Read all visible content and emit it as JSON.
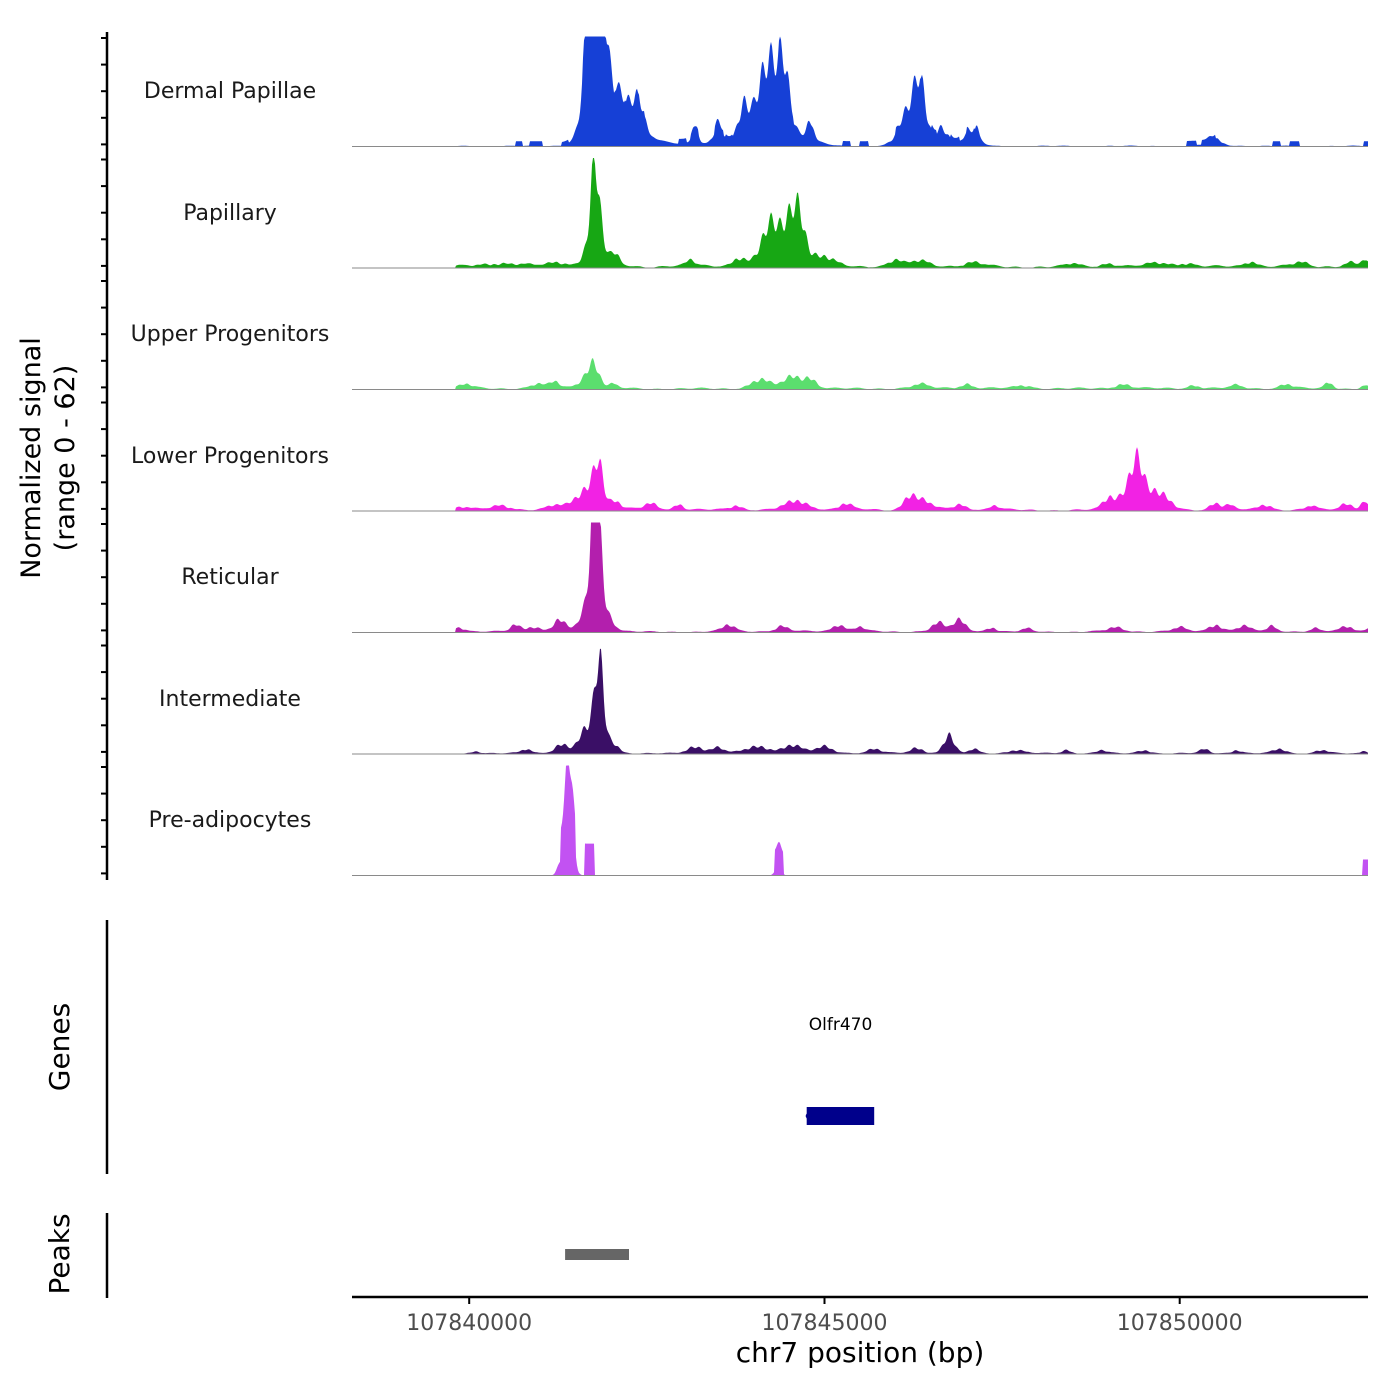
{
  "chart_data": {
    "type": "area",
    "title": "",
    "ylabel_line1": "Normalized signal",
    "ylabel_line2": "(range 0 - 62)",
    "ylim": [
      0,
      62
    ],
    "xlabel": "chr7 position (bp)",
    "xlim": [
      107838350,
      107852650
    ],
    "xticks": [
      107840000,
      107845000,
      107850000
    ],
    "xtick_labels": [
      "107840000",
      "107845000",
      "107850000"
    ],
    "tracks": [
      {
        "name": "Dermal Papillae",
        "color": "#1640d6",
        "base": 0.4,
        "blocks": [
          [
            107840650,
            107840750,
            3
          ],
          [
            107840850,
            107841030,
            3
          ],
          [
            107841300,
            107841400,
            2
          ],
          [
            107841600,
            107841800,
            4
          ],
          [
            107842050,
            107842200,
            3
          ],
          [
            107842380,
            107842460,
            3
          ],
          [
            107842950,
            107843060,
            3
          ],
          [
            107843120,
            107843220,
            2
          ],
          [
            107843450,
            107843580,
            3
          ],
          [
            107843600,
            107843700,
            2
          ],
          [
            107844350,
            107844500,
            3
          ],
          [
            107844500,
            107844570,
            3
          ],
          [
            107845250,
            107845370,
            3
          ],
          [
            107845500,
            107845620,
            3
          ],
          [
            107846000,
            107846350,
            3
          ],
          [
            107846500,
            107846570,
            3
          ],
          [
            107846780,
            107846900,
            3
          ],
          [
            107847000,
            107847110,
            3
          ],
          [
            107850100,
            107850230,
            3
          ],
          [
            107850300,
            107850420,
            3
          ],
          [
            107850380,
            107850500,
            3
          ],
          [
            107851300,
            107851420,
            3
          ],
          [
            107851550,
            107851680,
            3
          ],
          [
            107852590,
            107852650,
            3
          ]
        ],
        "peaks": [
          [
            107841780,
            60,
            70,
            60
          ],
          [
            107841780,
            36,
            90,
            20
          ],
          [
            107841750,
            45,
            110,
            150
          ],
          [
            107841850,
            30,
            110,
            220
          ],
          [
            107842100,
            14,
            100,
            200
          ],
          [
            107842350,
            20,
            100,
            350
          ],
          [
            107843180,
            9,
            35,
            100
          ],
          [
            107843500,
            8,
            60,
            120
          ],
          [
            107843860,
            15,
            70,
            180
          ],
          [
            107844220,
            28,
            160,
            160
          ],
          [
            107844430,
            18,
            60,
            150
          ],
          [
            107844300,
            10,
            200,
            350
          ],
          [
            107844800,
            11,
            40,
            160
          ],
          [
            107846350,
            22,
            80,
            80
          ],
          [
            107846200,
            14,
            130,
            180
          ],
          [
            107846650,
            8,
            80,
            120
          ],
          [
            107847150,
            7,
            40,
            100
          ],
          [
            107847000,
            5,
            60,
            150
          ],
          [
            107850500,
            3,
            80,
            200
          ]
        ]
      },
      {
        "name": "Papillary",
        "color": "#17a714",
        "base": 1.0,
        "blocks": [],
        "peaks": [
          [
            107841770,
            30,
            60,
            30
          ],
          [
            107841770,
            18,
            100,
            150
          ],
          [
            107842050,
            5,
            60,
            180
          ],
          [
            107841250,
            2,
            120,
            500
          ],
          [
            107840450,
            1.5,
            300,
            500
          ],
          [
            107843120,
            3,
            60,
            300
          ],
          [
            107844250,
            7,
            100,
            80
          ],
          [
            107844220,
            11,
            140,
            120
          ],
          [
            107844520,
            14,
            110,
            100
          ],
          [
            107844650,
            12,
            70,
            80
          ],
          [
            107844580,
            8,
            180,
            200
          ],
          [
            107845000,
            4,
            140,
            250
          ],
          [
            107843800,
            4,
            80,
            250
          ],
          [
            107846000,
            3,
            80,
            250
          ],
          [
            107846350,
            2.5,
            120,
            350
          ],
          [
            107847100,
            2,
            120,
            300
          ],
          [
            107848500,
            1.5,
            80,
            250
          ],
          [
            107849000,
            1.5,
            100,
            250
          ],
          [
            107849700,
            1.8,
            150,
            300
          ],
          [
            107850100,
            1.5,
            100,
            300
          ],
          [
            107851000,
            2.5,
            80,
            250
          ],
          [
            107851700,
            2,
            100,
            250
          ],
          [
            107852400,
            2,
            80,
            250
          ],
          [
            107852600,
            3,
            40,
            80
          ]
        ]
      },
      {
        "name": "Upper Progenitors",
        "color": "#5bde6e",
        "base": 0.8,
        "blocks": [],
        "peaks": [
          [
            107841760,
            8,
            70,
            100
          ],
          [
            107841660,
            5,
            100,
            180
          ],
          [
            107842030,
            2,
            50,
            150
          ],
          [
            107840960,
            2,
            80,
            250
          ],
          [
            107841200,
            3,
            60,
            150
          ],
          [
            107839950,
            2,
            80,
            250
          ],
          [
            107844100,
            4,
            120,
            200
          ],
          [
            107844550,
            5,
            120,
            180
          ],
          [
            107844800,
            4,
            80,
            200
          ],
          [
            107846350,
            2,
            100,
            300
          ],
          [
            107847000,
            2,
            80,
            250
          ],
          [
            107847800,
            1.5,
            100,
            300
          ],
          [
            107849200,
            2,
            100,
            300
          ],
          [
            107850200,
            1.5,
            80,
            250
          ],
          [
            107850800,
            1.5,
            80,
            200
          ],
          [
            107851500,
            2,
            80,
            200
          ],
          [
            107852100,
            3,
            50,
            100
          ],
          [
            107852600,
            1.5,
            40,
            80
          ]
        ]
      },
      {
        "name": "Lower Progenitors",
        "color": "#f222e4",
        "base": 0.8,
        "blocks": [],
        "peaks": [
          [
            107841820,
            17,
            65,
            60
          ],
          [
            107841700,
            9,
            110,
            180
          ],
          [
            107841500,
            3,
            100,
            200
          ],
          [
            107842050,
            4,
            70,
            200
          ],
          [
            107841200,
            2,
            100,
            250
          ],
          [
            107839900,
            1.5,
            100,
            300
          ],
          [
            107840450,
            2,
            120,
            300
          ],
          [
            107842550,
            3,
            80,
            200
          ],
          [
            107842950,
            2.5,
            60,
            200
          ],
          [
            107843750,
            2,
            80,
            250
          ],
          [
            107844600,
            4,
            150,
            250
          ],
          [
            107845300,
            3,
            80,
            250
          ],
          [
            107846200,
            6,
            80,
            120
          ],
          [
            107846400,
            4,
            100,
            200
          ],
          [
            107846900,
            2.5,
            80,
            250
          ],
          [
            107847400,
            2,
            60,
            200
          ],
          [
            107849000,
            5,
            80,
            150
          ],
          [
            107849400,
            15,
            80,
            80
          ],
          [
            107849300,
            9,
            130,
            150
          ],
          [
            107849600,
            7,
            120,
            150
          ],
          [
            107849800,
            4,
            100,
            200
          ],
          [
            107850500,
            3,
            70,
            150
          ],
          [
            107850700,
            2,
            60,
            150
          ],
          [
            107851200,
            2.5,
            80,
            200
          ],
          [
            107851850,
            2,
            60,
            150
          ],
          [
            107852350,
            3,
            80,
            200
          ],
          [
            107852600,
            4,
            40,
            80
          ]
        ]
      },
      {
        "name": "Reticular",
        "color": "#b31fad",
        "base": 0.6,
        "blocks": [],
        "peaks": [
          [
            107841780,
            44,
            60,
            60
          ],
          [
            107841780,
            24,
            100,
            160
          ],
          [
            107841600,
            3,
            80,
            200
          ],
          [
            107842000,
            2.5,
            60,
            200
          ],
          [
            107841270,
            5,
            80,
            120
          ],
          [
            107840650,
            3,
            60,
            150
          ],
          [
            107840900,
            2,
            100,
            200
          ],
          [
            107839850,
            2,
            80,
            200
          ],
          [
            107843650,
            3,
            80,
            200
          ],
          [
            107844400,
            2.5,
            80,
            250
          ],
          [
            107845200,
            3,
            80,
            250
          ],
          [
            107845500,
            2,
            60,
            200
          ],
          [
            107846600,
            4,
            80,
            200
          ],
          [
            107846900,
            5,
            80,
            150
          ],
          [
            107847350,
            2,
            60,
            150
          ],
          [
            107847850,
            1.5,
            60,
            150
          ],
          [
            107849100,
            2,
            100,
            250
          ],
          [
            107850000,
            2,
            80,
            250
          ],
          [
            107850500,
            3,
            80,
            200
          ],
          [
            107850900,
            2.5,
            80,
            200
          ],
          [
            107851300,
            2.5,
            60,
            200
          ],
          [
            107851900,
            1.5,
            60,
            150
          ],
          [
            107852350,
            2.5,
            80,
            200
          ],
          [
            107852650,
            1.5,
            40,
            80
          ]
        ]
      },
      {
        "name": "Intermediate",
        "color": "#3a0f66",
        "base": 0.5,
        "blocks": [],
        "peaks": [
          [
            107841830,
            28,
            55,
            60
          ],
          [
            107841800,
            15,
            110,
            140
          ],
          [
            107841600,
            6,
            80,
            150
          ],
          [
            107841300,
            4,
            80,
            200
          ],
          [
            107842050,
            3,
            60,
            150
          ],
          [
            107840800,
            2,
            60,
            150
          ],
          [
            107840100,
            1,
            60,
            150
          ],
          [
            107843180,
            3,
            100,
            200
          ],
          [
            107843500,
            2.5,
            80,
            150
          ],
          [
            107844050,
            3,
            150,
            250
          ],
          [
            107844550,
            3.5,
            120,
            250
          ],
          [
            107845000,
            3,
            100,
            250
          ],
          [
            107845700,
            2,
            80,
            200
          ],
          [
            107846300,
            2.5,
            80,
            200
          ],
          [
            107846750,
            8,
            70,
            80
          ],
          [
            107847100,
            2,
            60,
            150
          ],
          [
            107847700,
            1.5,
            100,
            250
          ],
          [
            107848400,
            1.5,
            60,
            150
          ],
          [
            107848900,
            1.5,
            60,
            150
          ],
          [
            107849500,
            1.5,
            80,
            150
          ],
          [
            107850350,
            2,
            60,
            150
          ],
          [
            107850800,
            1.5,
            60,
            150
          ],
          [
            107851400,
            2,
            80,
            150
          ],
          [
            107852000,
            1.5,
            80,
            150
          ],
          [
            107852600,
            1.5,
            30,
            60
          ]
        ]
      },
      {
        "name": "Pre-adipocytes",
        "color": "#c252f2",
        "base": 0.0,
        "blocks": [
          [
            107841290,
            107841500,
            18
          ],
          [
            107841620,
            107841760,
            18
          ],
          [
            107844290,
            107844420,
            12
          ],
          [
            107852570,
            107852650,
            9
          ]
        ],
        "peaks": [
          [
            107841400,
            26,
            40,
            40
          ],
          [
            107841330,
            10,
            60,
            60
          ],
          [
            107841440,
            14,
            50,
            50
          ],
          [
            107844350,
            5,
            40,
            40
          ]
        ]
      }
    ],
    "genes": [
      {
        "name": "Olfr470",
        "start": 107844750,
        "end": 107845700,
        "strand": "-",
        "color": "#00008b"
      }
    ],
    "peak_regions": [
      {
        "start": 107841350,
        "end": 107842250,
        "color": "#666666"
      }
    ],
    "panel_labels": {
      "genes": "Genes",
      "peaks": "Peaks"
    }
  }
}
